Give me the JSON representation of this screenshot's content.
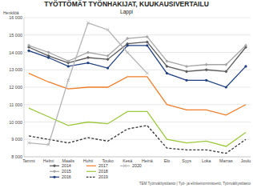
{
  "chart_data": {
    "type": "line",
    "title": "TYÖTTÖMÄT TYÖNHAKIJAT, KUUKAUSIVERTAILU",
    "subtitle": "Lappi",
    "y_label": "Henkilöä",
    "source": "TEM Työnvälitystilasto | Työ- ja elinkeinoministeriö, Työnvälitystilasto",
    "categories": [
      "Tammi",
      "Helmi",
      "Maalis",
      "Huhti",
      "Touko",
      "Kesä",
      "Heinä",
      "Elo",
      "Syys",
      "Loka",
      "Marras",
      "Joulu"
    ],
    "ylim": [
      8000,
      16000
    ],
    "yticks": [
      {
        "value": 8000,
        "label": "8 000"
      },
      {
        "value": 9000,
        "label": "9 000"
      },
      {
        "value": 10000,
        "label": "10 000"
      },
      {
        "value": 11000,
        "label": "11 000"
      },
      {
        "value": 12000,
        "label": "12 000"
      },
      {
        "value": 13000,
        "label": "13 000"
      },
      {
        "value": 14000,
        "label": "14 000"
      },
      {
        "value": 15000,
        "label": "15 000"
      },
      {
        "value": 16000,
        "label": "16 000"
      }
    ],
    "grid": true,
    "legend": "bottom-left",
    "series": [
      {
        "name": "2014",
        "color": "#5a5a5a",
        "marker": "diamond",
        "line_style": "solid",
        "values": [
          14300,
          13800,
          13400,
          13700,
          13600,
          14500,
          14600,
          13200,
          12900,
          13000,
          12900,
          14300
        ]
      },
      {
        "name": "2015",
        "color": "#a6a6a6",
        "marker": "diamond",
        "line_style": "solid",
        "values": [
          14400,
          14000,
          13500,
          14000,
          13800,
          14800,
          14900,
          13500,
          13200,
          13300,
          13300,
          14400
        ]
      },
      {
        "name": "2016",
        "color": "#1f3f80",
        "marker": "circle",
        "line_style": "solid",
        "values": [
          14100,
          13700,
          13200,
          13400,
          13100,
          14400,
          14400,
          12800,
          12400,
          12400,
          12000,
          13200
        ]
      },
      {
        "name": "2017",
        "color": "#f07d28",
        "marker": "none",
        "line_style": "solid",
        "values": [
          12800,
          12300,
          11900,
          12000,
          12000,
          12600,
          12600,
          11000,
          10700,
          10700,
          10400,
          11000
        ]
      },
      {
        "name": "2018",
        "color": "#9bc83c",
        "marker": "none",
        "line_style": "solid",
        "values": [
          10800,
          10300,
          9800,
          10000,
          9900,
          10600,
          10600,
          9000,
          8800,
          8900,
          8600,
          9400
        ]
      },
      {
        "name": "2019",
        "color": "#333333",
        "marker": "none",
        "line_style": "dashed",
        "values": [
          9200,
          9000,
          8800,
          9100,
          8900,
          9600,
          9800,
          8500,
          8400,
          8400,
          8200,
          9000
        ]
      },
      {
        "name": "2020",
        "color": "#b4b4b4",
        "marker": "cross",
        "line_style": "solid",
        "values": [
          8800,
          8700,
          12400,
          15700,
          15300,
          14000,
          12800,
          null,
          null,
          null,
          null,
          null
        ]
      }
    ]
  }
}
